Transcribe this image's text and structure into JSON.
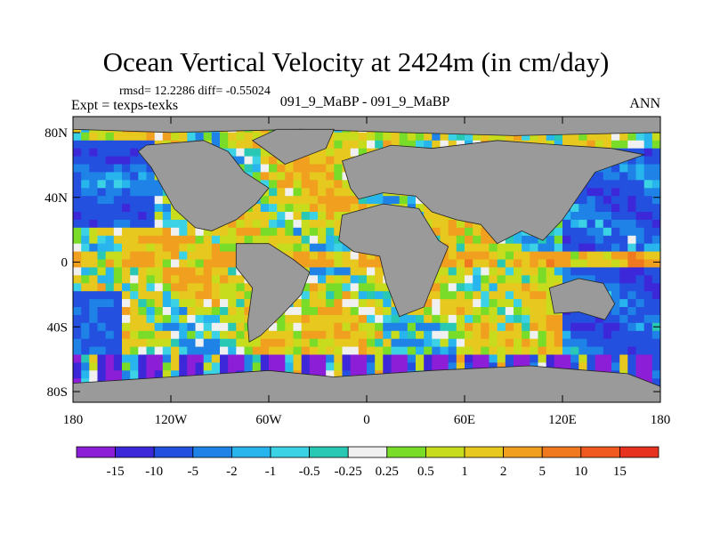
{
  "chart_data": {
    "type": "heatmap",
    "title": "Ocean Vertical Velocity at 2424m (in cm/day)",
    "stats": "rmsd= 12.2286 diff= -0.55024",
    "left_label": "Expt = texps-texks",
    "subtitle": "091_9_MaBP - 091_9_MaBP",
    "season": "ANN",
    "x_ticks": [
      "180",
      "120W",
      "60W",
      "0",
      "60E",
      "120E",
      "180"
    ],
    "y_ticks": [
      "80N",
      "40N",
      "0",
      "40S",
      "80S"
    ],
    "xlim": [
      -180,
      180
    ],
    "ylim": [
      -90,
      90
    ],
    "colorbar": {
      "labels": [
        "-15",
        "-10",
        "-5",
        "-2",
        "-1",
        "-0.5",
        "-0.25",
        "0.25",
        "0.5",
        "1",
        "2",
        "5",
        "10",
        "15"
      ],
      "colors": [
        "#8c1ed8",
        "#3c28d8",
        "#2450e0",
        "#1e82e6",
        "#28b4ec",
        "#3cd2e6",
        "#28c8b4",
        "#f0f0f0",
        "#78dc28",
        "#c8dc1e",
        "#e6c81e",
        "#f0a01e",
        "#f0781e",
        "#f05a1e",
        "#e6321e"
      ]
    },
    "land_color": "#9a9a9a"
  }
}
